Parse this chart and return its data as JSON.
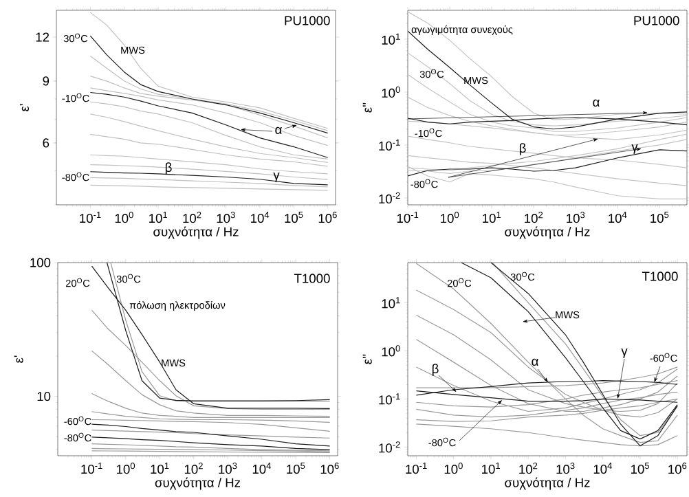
{
  "chart_data": [
    {
      "type": "line",
      "log": "xy",
      "xlabel": "συχνότητα / Hz",
      "ylabel": "ε'",
      "xlim": [
        0.01,
        1700000
      ],
      "ylim": [
        4.0,
        14.3
      ],
      "xticks": [
        {
          "value": 0.1,
          "label": "10$^{-1}$"
        },
        {
          "value": 1,
          "label": "10$^{0}$"
        },
        {
          "value": 10,
          "label": "10$^{1}$"
        },
        {
          "value": 100,
          "label": "10$^{2}$"
        },
        {
          "value": 1000,
          "label": "10$^{3}$"
        },
        {
          "value": 10000,
          "label": "10$^{4}$"
        },
        {
          "value": 100000,
          "label": "10$^{5}$"
        },
        {
          "value": 1000000,
          "label": "10$^{6}$"
        }
      ],
      "yticks": [
        6,
        9,
        12
      ],
      "x": [
        0.1,
        0.3,
        1,
        3,
        10,
        100,
        1000,
        10000,
        100000,
        1000000
      ],
      "series": [
        {
          "color": "#c0c0c0",
          "values": [
            14.1,
            13.0,
            11.4,
            9.8,
            8.7,
            8.1,
            7.85,
            7.55,
            7.05,
            6.6
          ]
        },
        {
          "color": "#c0c0c0",
          "values": [
            10.6,
            9.8,
            9.0,
            8.55,
            8.25,
            8.0,
            7.75,
            7.4,
            6.95,
            6.5
          ]
        },
        {
          "color": "#c0c0c0",
          "values": [
            9.3,
            9.0,
            8.6,
            8.3,
            8.15,
            7.95,
            7.7,
            7.2,
            6.7,
            6.2
          ]
        },
        {
          "color": "#c0c0c0",
          "values": [
            8.6,
            8.45,
            8.3,
            8.15,
            7.95,
            7.7,
            7.3,
            6.85,
            6.3,
            5.9
          ]
        },
        {
          "color": "#c0c0c0",
          "values": [
            7.85,
            7.75,
            7.6,
            7.4,
            7.25,
            6.85,
            6.3,
            5.85,
            5.55,
            5.4
          ]
        },
        {
          "color": "#c0c0c0",
          "values": [
            7.25,
            7.1,
            6.9,
            6.7,
            6.5,
            6.15,
            5.85,
            5.6,
            5.45,
            5.28
          ]
        },
        {
          "color": "#c0c0c0",
          "values": [
            6.35,
            6.25,
            6.15,
            6.0,
            5.95,
            5.75,
            5.55,
            5.4,
            5.3,
            5.15
          ]
        },
        {
          "color": "#c0c0c0",
          "values": [
            5.55,
            5.52,
            5.5,
            5.45,
            5.4,
            5.3,
            5.2,
            5.06,
            4.97,
            4.9
          ]
        },
        {
          "color": "#c0c0c0",
          "values": [
            5.2,
            5.19,
            5.17,
            5.15,
            5.12,
            5.05,
            4.98,
            4.9,
            4.8,
            4.72
          ]
        },
        {
          "color": "#c0c0c0",
          "values": [
            4.78,
            4.77,
            4.76,
            4.74,
            4.72,
            4.68,
            4.64,
            4.6,
            4.54,
            4.5
          ]
        },
        {
          "color": "#c0c0c0",
          "values": [
            4.55,
            4.54,
            4.53,
            4.52,
            4.5,
            4.48,
            4.46,
            4.44,
            4.42,
            4.4
          ]
        },
        {
          "color": "#1a1a1a",
          "values": [
            12.1,
            10.7,
            9.55,
            8.8,
            8.4,
            8.0,
            7.7,
            7.3,
            6.85,
            6.4
          ]
        },
        {
          "color": "#1a1a1a",
          "values": [
            8.35,
            8.25,
            8.1,
            7.9,
            7.65,
            7.3,
            6.75,
            6.2,
            5.85,
            5.45
          ]
        },
        {
          "color": "#1a1a1a",
          "values": [
            4.97,
            4.95,
            4.93,
            4.92,
            4.9,
            4.85,
            4.8,
            4.73,
            4.6,
            4.56
          ]
        }
      ],
      "annotations": [
        "PU1000",
        "30$^{O}$C",
        "MWS",
        "-10$^{O}$C",
        {
          "text": "α",
          "x": 2700,
          "y": 6.55
        },
        "β",
        "γ",
        "-80$^{O}$C"
      ]
    },
    {
      "type": "line",
      "log": "xy",
      "xlabel": "συχνότητα / Hz",
      "ylabel": "ε''",
      "xlim": [
        0.1,
        450000
      ],
      "ylim": [
        0.0074,
        35
      ],
      "xticks": [
        {
          "value": 0.1,
          "label": "10$^{-1}$"
        },
        {
          "value": 1,
          "label": "10$^{0}$"
        },
        {
          "value": 10,
          "label": "10$^{1}$"
        },
        {
          "value": 100,
          "label": "10$^{2}$"
        },
        {
          "value": 1000,
          "label": "10$^{3}$"
        },
        {
          "value": 10000,
          "label": "10$^{4}$"
        },
        {
          "value": 100000,
          "label": "10$^{5}$"
        }
      ],
      "yticks": [
        {
          "value": 0.01,
          "label": "10$^{-2}$"
        },
        {
          "value": 0.1,
          "label": "10$^{-1}$"
        },
        {
          "value": 1,
          "label": "10$^{0}$"
        },
        {
          "value": 10,
          "label": "10$^{1}$"
        }
      ],
      "x": [
        0.1,
        0.3,
        1,
        3,
        10,
        30,
        100,
        300,
        1000,
        10000,
        100000,
        450000
      ],
      "series": [
        {
          "color": "#c4c4c4",
          "values": [
            33,
            20,
            9.5,
            4.3,
            1.95,
            0.84,
            0.4,
            0.3,
            0.31,
            0.38,
            0.4,
            0.38
          ]
        },
        {
          "color": "#c4c4c4",
          "values": [
            5.5,
            3.0,
            1.45,
            0.69,
            0.38,
            0.28,
            0.24,
            0.23,
            0.24,
            0.28,
            0.32,
            0.36
          ]
        },
        {
          "color": "#c4c4c4",
          "values": [
            2.15,
            1.18,
            0.65,
            0.38,
            0.27,
            0.23,
            0.21,
            0.18,
            0.18,
            0.21,
            0.27,
            0.33
          ]
        },
        {
          "color": "#c4c4c4",
          "values": [
            0.8,
            0.51,
            0.36,
            0.28,
            0.23,
            0.2,
            0.17,
            0.155,
            0.155,
            0.18,
            0.22,
            0.27
          ]
        },
        {
          "color": "#c4c4c4",
          "values": [
            0.28,
            0.27,
            0.25,
            0.23,
            0.21,
            0.19,
            0.17,
            0.155,
            0.14,
            0.127,
            0.155,
            0.19
          ]
        },
        {
          "color": "#c4c4c4",
          "values": [
            0.147,
            0.127,
            0.11,
            0.094,
            0.085,
            0.077,
            0.07,
            0.063,
            0.057,
            0.052,
            0.043,
            0.037
          ]
        },
        {
          "color": "#c4c4c4",
          "values": [
            0.063,
            0.057,
            0.052,
            0.047,
            0.045,
            0.041,
            0.037,
            0.033,
            0.029,
            0.023,
            0.019,
            0.017
          ]
        },
        {
          "color": "#c4c4c4",
          "values": [
            0.039,
            0.026,
            0.02,
            0.029,
            0.027,
            0.025,
            0.023,
            0.02,
            0.016,
            0.011,
            0.0096,
            0.0096
          ]
        },
        {
          "color": "#c4c4c4",
          "values": [
            0.037,
            0.035,
            0.033,
            0.037,
            0.041,
            0.045,
            0.049,
            0.055,
            0.063,
            0.085,
            0.127,
            0.16
          ]
        },
        {
          "color": "#c4c4c4",
          "values": [
            0.033,
            0.032,
            0.029,
            0.032,
            0.033,
            0.037,
            0.043,
            0.049,
            0.057,
            0.077,
            0.1,
            0.127
          ]
        },
        {
          "color": "#1a1a1a",
          "values": [
            14.2,
            6.4,
            2.9,
            1.37,
            0.62,
            0.31,
            0.22,
            0.2,
            0.22,
            0.31,
            0.4,
            0.42
          ]
        },
        {
          "color": "#1a1a1a",
          "values": [
            0.32,
            0.27,
            0.25,
            0.27,
            0.28,
            0.29,
            0.31,
            0.32,
            0.33,
            0.31,
            0.27,
            0.24
          ]
        },
        {
          "color": "#1a1a1a",
          "values": [
            0.026,
            0.033,
            0.035,
            0.035,
            0.037,
            0.035,
            0.032,
            0.033,
            0.037,
            0.057,
            0.081,
            0.077
          ]
        }
      ],
      "annotations": [
        "PU1000",
        "αγωγιμότητα συνεχούς",
        "30$^{O}$C",
        "MWS",
        "α",
        "-10$^{O}$C",
        "β",
        {
          "text": "γ",
          "x": 37000,
          "y": 0.085
        },
        "-80$^{O}$C"
      ]
    },
    {
      "type": "line",
      "log": "xy",
      "xlabel": "συχνότητα / Hz",
      "ylabel": "ε'",
      "xlim": [
        0.01,
        1700000
      ],
      "ylim": [
        3.6,
        100
      ],
      "xticks": [
        {
          "value": 0.1,
          "label": "10$^{-1}$"
        },
        {
          "value": 1,
          "label": "10$^{0}$"
        },
        {
          "value": 10,
          "label": "10$^{1}$"
        },
        {
          "value": 100,
          "label": "10$^{2}$"
        },
        {
          "value": 1000,
          "label": "10$^{3}$"
        },
        {
          "value": 10000,
          "label": "10$^{4}$"
        },
        {
          "value": 100000,
          "label": "10$^{5}$"
        },
        {
          "value": 1000000,
          "label": "10$^{6}$"
        }
      ],
      "yticks": [
        10,
        100
      ],
      "x": [
        0.1,
        0.3,
        1,
        3,
        10,
        30,
        100,
        1000,
        10000,
        100000,
        1000000
      ],
      "series": [
        {
          "color": "#999999",
          "x": [
            0.36,
            1,
            3,
            10,
            30,
            100,
            1000,
            10000,
            100000,
            1000000
          ],
          "values": [
            100,
            37,
            15.3,
            10.1,
            9.25,
            9.2,
            9.2,
            9.2,
            9.2,
            9.2
          ]
        },
        {
          "color": "#999999",
          "values": [
            44,
            32,
            24,
            18,
            13.1,
            10.1,
            8.5,
            8.1,
            8.0,
            8.0,
            8.0
          ]
        },
        {
          "color": "#999999",
          "values": [
            21.9,
            17.3,
            13.1,
            10.3,
            8.65,
            7.8,
            7.5,
            7.2,
            7.2,
            7.15,
            7.1
          ]
        },
        {
          "color": "#999999",
          "values": [
            10.5,
            9.2,
            8.15,
            7.5,
            7.2,
            7.1,
            6.95,
            6.95,
            6.95,
            6.95,
            6.95
          ]
        },
        {
          "color": "#999999",
          "values": [
            7.7,
            7.4,
            7.1,
            6.95,
            6.8,
            6.75,
            6.7,
            6.7,
            6.65,
            6.55,
            6.4
          ]
        },
        {
          "color": "#999999",
          "values": [
            6.7,
            6.68,
            6.63,
            6.6,
            6.55,
            6.5,
            6.47,
            6.37,
            6.18,
            5.82,
            5.49
          ]
        },
        {
          "color": "#999999",
          "values": [
            5.6,
            5.55,
            5.5,
            5.45,
            5.4,
            5.35,
            5.27,
            5.15,
            5.07,
            4.96,
            4.88
          ]
        },
        {
          "color": "#999999",
          "values": [
            4.42,
            4.38,
            4.35,
            4.3,
            4.25,
            4.2,
            4.18,
            4.08,
            4.0,
            3.96,
            3.92
          ]
        },
        {
          "color": "#999999",
          "values": [
            4.08,
            4.06,
            4.05,
            4.03,
            4.02,
            4.01,
            4.0,
            3.97,
            3.93,
            3.9,
            3.85
          ]
        },
        {
          "color": "#999999",
          "values": [
            3.92,
            3.91,
            3.9,
            3.89,
            3.88,
            3.87,
            3.86,
            3.84,
            3.82,
            3.81,
            3.8
          ]
        },
        {
          "color": "#1a1a1a",
          "x": [
            0.28,
            1,
            3,
            10,
            30,
            100,
            1000,
            10000,
            100000,
            1000000
          ],
          "values": [
            100,
            31,
            13.1,
            9.7,
            9.35,
            9.25,
            9.25,
            9.25,
            9.3,
            9.45
          ]
        },
        {
          "color": "#1a1a1a",
          "values": [
            94,
            65,
            44,
            29,
            18,
            11.2,
            8.8,
            8.15,
            8.15,
            8.15,
            8.1
          ]
        },
        {
          "color": "#1a1a1a",
          "values": [
            6.2,
            6.1,
            5.95,
            5.75,
            5.6,
            5.45,
            5.38,
            5.07,
            4.78,
            4.42,
            4.25
          ]
        },
        {
          "color": "#1a1a1a",
          "values": [
            4.96,
            4.9,
            4.83,
            4.75,
            4.69,
            4.6,
            4.5,
            4.36,
            4.25,
            4.08,
            4.0
          ]
        }
      ],
      "annotations": [
        "T1000",
        "20$^{O}$C",
        "30$^{O}$C",
        "πόλωση ηλεκτροδίων",
        "MWS",
        "-60$^{O}$C",
        "-80$^{O}$C"
      ]
    },
    {
      "type": "line",
      "log": "xy",
      "xlabel": "συχνότητα / Hz",
      "ylabel": "ε''",
      "xlim": [
        0.059,
        1800000
      ],
      "ylim": [
        0.0066,
        68
      ],
      "xticks": [
        {
          "value": 0.1,
          "label": "10$^{-1}$"
        },
        {
          "value": 1,
          "label": "10$^{0}$"
        },
        {
          "value": 10,
          "label": "10$^{1}$"
        },
        {
          "value": 100,
          "label": "10$^{2}$"
        },
        {
          "value": 1000,
          "label": "10$^{3}$"
        },
        {
          "value": 10000,
          "label": "10$^{4}$"
        },
        {
          "value": 100000,
          "label": "10$^{5}$"
        },
        {
          "value": 1000000,
          "label": "10$^{6}$"
        }
      ],
      "yticks": [
        {
          "value": 0.01,
          "label": "10$^{-2}$"
        },
        {
          "value": 0.1,
          "label": "10$^{-1}$"
        },
        {
          "value": 1,
          "label": "10$^{0}$"
        },
        {
          "value": 10,
          "label": "10$^{1}$"
        }
      ],
      "x": [
        0.1,
        1,
        10,
        100,
        1000,
        3000,
        10000,
        30000,
        100000,
        300000,
        1000000
      ],
      "series": [
        {
          "color": "#999999",
          "values": [
            65,
            19.3,
            3.7,
            0.58,
            0.1,
            0.046,
            0.024,
            0.0173,
            0.0125,
            0.0135,
            0.046
          ]
        },
        {
          "color": "#999999",
          "values": [
            18.3,
            7.2,
            2.4,
            0.46,
            0.124,
            0.085,
            0.058,
            0.046,
            0.042,
            0.052,
            0.1
          ]
        },
        {
          "color": "#999999",
          "values": [
            5.5,
            2.15,
            0.65,
            0.155,
            0.08,
            0.068,
            0.058,
            0.055,
            0.058,
            0.08,
            0.215
          ]
        },
        {
          "color": "#999999",
          "values": [
            1.73,
            0.58,
            0.19,
            0.08,
            0.055,
            0.055,
            0.065,
            0.076,
            0.1,
            0.139,
            0.3
          ]
        },
        {
          "color": "#999999",
          "values": [
            0.46,
            0.19,
            0.09,
            0.055,
            0.065,
            0.08,
            0.1,
            0.124,
            0.155,
            0.215,
            0.42
          ]
        },
        {
          "color": "#999999",
          "values": [
            0.17,
            0.17,
            0.172,
            0.18,
            0.19,
            0.2,
            0.215,
            0.24,
            0.28,
            0.33,
            0.46
          ]
        },
        {
          "color": "#999999",
          "values": [
            0.085,
            0.072,
            0.068,
            0.076,
            0.1,
            0.12,
            0.139,
            0.155,
            0.17,
            0.2,
            0.24
          ]
        },
        {
          "color": "#999999",
          "values": [
            0.061,
            0.046,
            0.042,
            0.046,
            0.058,
            0.065,
            0.08,
            0.095,
            0.106,
            0.124,
            0.139
          ]
        },
        {
          "color": "#999999",
          "values": [
            0.037,
            0.034,
            0.035,
            0.042,
            0.046,
            0.05,
            0.058,
            0.065,
            0.072,
            0.085,
            0.1
          ]
        },
        {
          "color": "#999999",
          "values": [
            0.03,
            0.027,
            0.024,
            0.02,
            0.0155,
            0.0139,
            0.0125,
            0.0112,
            0.0106,
            0.0112,
            0.0173
          ]
        },
        {
          "color": "#999999",
          "x": [
            11,
            100,
            1000,
            3000,
            10000,
            30000,
            100000,
            300000,
            1000000
          ],
          "values": [
            68,
            10,
            1.39,
            0.42,
            0.112,
            0.037,
            0.0173,
            0.02,
            0.07
          ]
        },
        {
          "color": "#1a1a1a",
          "x": [
            1.6,
            10,
            100,
            1000,
            3000,
            10000,
            30000,
            100000,
            300000,
            1000000
          ],
          "values": [
            68,
            33,
            6.5,
            0.72,
            0.23,
            0.065,
            0.022,
            0.0147,
            0.022,
            0.076
          ]
        },
        {
          "color": "#1a1a1a",
          "x": [
            10,
            100,
            1000,
            3000,
            10000,
            30000,
            100000,
            300000,
            1000000
          ],
          "values": [
            68,
            15.5,
            2.15,
            0.58,
            0.124,
            0.03,
            0.0106,
            0.0173,
            0.072
          ]
        },
        {
          "color": "#1a1a1a",
          "values": [
            0.12,
            0.155,
            0.18,
            0.215,
            0.23,
            0.23,
            0.24,
            0.235,
            0.23,
            0.22,
            0.2
          ]
        },
        {
          "color": "#1a1a1a",
          "values": [
            0.147,
            0.124,
            0.106,
            0.09,
            0.09,
            0.092,
            0.1,
            0.097,
            0.095,
            0.09,
            0.085
          ]
        }
      ],
      "annotations": [
        "T1000",
        "20$^{O}$C",
        "30$^{O}$C",
        "MWS",
        {
          "text": "γ",
          "x": 25000,
          "y": 0.1
        },
        {
          "text": "-60$^{O}$C",
          "x": 240000,
          "y": 0.22
        },
        {
          "text": "α",
          "x": 340,
          "y": 0.22
        },
        {
          "text": "β",
          "x": 1.19,
          "y": 0.139
        },
        {
          "text": "-80$^{O}$C",
          "x": 20,
          "y": 0.095
        }
      ]
    }
  ]
}
